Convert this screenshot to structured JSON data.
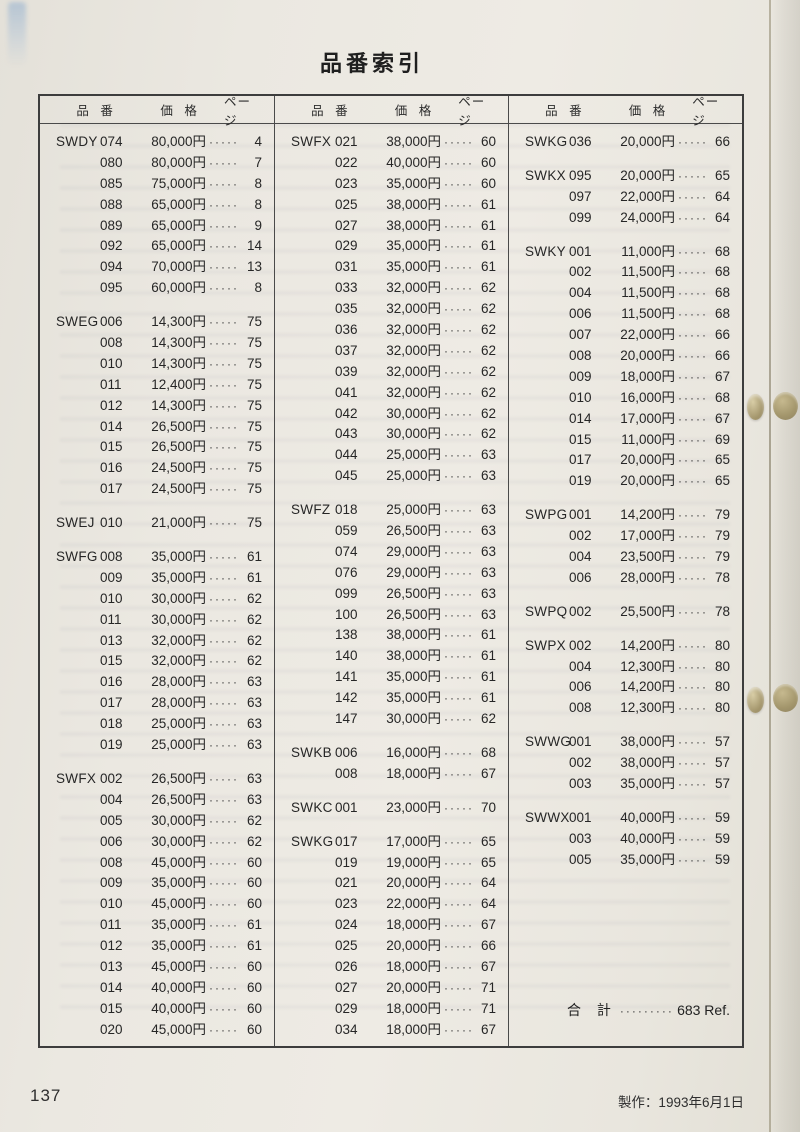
{
  "page": {
    "title": "品番索引",
    "page_number": "137",
    "footer_note": "製作：1993年6月1日"
  },
  "table": {
    "headers": {
      "part": "品 番",
      "price": "価 格",
      "page": "ページ"
    },
    "total": {
      "label": "合 計",
      "value": "683 Ref."
    },
    "columns": [
      {
        "groups": [
          {
            "rows": [
              {
                "prefix": "SWDY",
                "num": "074",
                "price": "80,000円",
                "page": "4"
              },
              {
                "prefix": "",
                "num": "080",
                "price": "80,000円",
                "page": "7"
              },
              {
                "prefix": "",
                "num": "085",
                "price": "75,000円",
                "page": "8"
              },
              {
                "prefix": "",
                "num": "088",
                "price": "65,000円",
                "page": "8"
              },
              {
                "prefix": "",
                "num": "089",
                "price": "65,000円",
                "page": "9"
              },
              {
                "prefix": "",
                "num": "092",
                "price": "65,000円",
                "page": "14"
              },
              {
                "prefix": "",
                "num": "094",
                "price": "70,000円",
                "page": "13"
              },
              {
                "prefix": "",
                "num": "095",
                "price": "60,000円",
                "page": "8"
              }
            ]
          },
          {
            "rows": [
              {
                "prefix": "SWEG",
                "num": "006",
                "price": "14,300円",
                "page": "75"
              },
              {
                "prefix": "",
                "num": "008",
                "price": "14,300円",
                "page": "75"
              },
              {
                "prefix": "",
                "num": "010",
                "price": "14,300円",
                "page": "75"
              },
              {
                "prefix": "",
                "num": "011",
                "price": "12,400円",
                "page": "75"
              },
              {
                "prefix": "",
                "num": "012",
                "price": "14,300円",
                "page": "75"
              },
              {
                "prefix": "",
                "num": "014",
                "price": "26,500円",
                "page": "75"
              },
              {
                "prefix": "",
                "num": "015",
                "price": "26,500円",
                "page": "75"
              },
              {
                "prefix": "",
                "num": "016",
                "price": "24,500円",
                "page": "75"
              },
              {
                "prefix": "",
                "num": "017",
                "price": "24,500円",
                "page": "75"
              }
            ]
          },
          {
            "rows": [
              {
                "prefix": "SWEJ",
                "num": "010",
                "price": "21,000円",
                "page": "75"
              }
            ]
          },
          {
            "rows": [
              {
                "prefix": "SWFG",
                "num": "008",
                "price": "35,000円",
                "page": "61"
              },
              {
                "prefix": "",
                "num": "009",
                "price": "35,000円",
                "page": "61"
              },
              {
                "prefix": "",
                "num": "010",
                "price": "30,000円",
                "page": "62"
              },
              {
                "prefix": "",
                "num": "011",
                "price": "30,000円",
                "page": "62"
              },
              {
                "prefix": "",
                "num": "013",
                "price": "32,000円",
                "page": "62"
              },
              {
                "prefix": "",
                "num": "015",
                "price": "32,000円",
                "page": "62"
              },
              {
                "prefix": "",
                "num": "016",
                "price": "28,000円",
                "page": "63"
              },
              {
                "prefix": "",
                "num": "017",
                "price": "28,000円",
                "page": "63"
              },
              {
                "prefix": "",
                "num": "018",
                "price": "25,000円",
                "page": "63"
              },
              {
                "prefix": "",
                "num": "019",
                "price": "25,000円",
                "page": "63"
              }
            ]
          },
          {
            "rows": [
              {
                "prefix": "SWFX",
                "num": "002",
                "price": "26,500円",
                "page": "63"
              },
              {
                "prefix": "",
                "num": "004",
                "price": "26,500円",
                "page": "63"
              },
              {
                "prefix": "",
                "num": "005",
                "price": "30,000円",
                "page": "62"
              },
              {
                "prefix": "",
                "num": "006",
                "price": "30,000円",
                "page": "62"
              },
              {
                "prefix": "",
                "num": "008",
                "price": "45,000円",
                "page": "60"
              },
              {
                "prefix": "",
                "num": "009",
                "price": "35,000円",
                "page": "60"
              },
              {
                "prefix": "",
                "num": "010",
                "price": "45,000円",
                "page": "60"
              },
              {
                "prefix": "",
                "num": "011",
                "price": "35,000円",
                "page": "61"
              },
              {
                "prefix": "",
                "num": "012",
                "price": "35,000円",
                "page": "61"
              },
              {
                "prefix": "",
                "num": "013",
                "price": "45,000円",
                "page": "60"
              },
              {
                "prefix": "",
                "num": "014",
                "price": "40,000円",
                "page": "60"
              },
              {
                "prefix": "",
                "num": "015",
                "price": "40,000円",
                "page": "60"
              },
              {
                "prefix": "",
                "num": "020",
                "price": "45,000円",
                "page": "60"
              }
            ]
          }
        ]
      },
      {
        "groups": [
          {
            "rows": [
              {
                "prefix": "SWFX",
                "num": "021",
                "price": "38,000円",
                "page": "60"
              },
              {
                "prefix": "",
                "num": "022",
                "price": "40,000円",
                "page": "60"
              },
              {
                "prefix": "",
                "num": "023",
                "price": "35,000円",
                "page": "60"
              },
              {
                "prefix": "",
                "num": "025",
                "price": "38,000円",
                "page": "61"
              },
              {
                "prefix": "",
                "num": "027",
                "price": "38,000円",
                "page": "61"
              },
              {
                "prefix": "",
                "num": "029",
                "price": "35,000円",
                "page": "61"
              },
              {
                "prefix": "",
                "num": "031",
                "price": "35,000円",
                "page": "61"
              },
              {
                "prefix": "",
                "num": "033",
                "price": "32,000円",
                "page": "62"
              },
              {
                "prefix": "",
                "num": "035",
                "price": "32,000円",
                "page": "62"
              },
              {
                "prefix": "",
                "num": "036",
                "price": "32,000円",
                "page": "62"
              },
              {
                "prefix": "",
                "num": "037",
                "price": "32,000円",
                "page": "62"
              },
              {
                "prefix": "",
                "num": "039",
                "price": "32,000円",
                "page": "62"
              },
              {
                "prefix": "",
                "num": "041",
                "price": "32,000円",
                "page": "62"
              },
              {
                "prefix": "",
                "num": "042",
                "price": "30,000円",
                "page": "62"
              },
              {
                "prefix": "",
                "num": "043",
                "price": "30,000円",
                "page": "62"
              },
              {
                "prefix": "",
                "num": "044",
                "price": "25,000円",
                "page": "63"
              },
              {
                "prefix": "",
                "num": "045",
                "price": "25,000円",
                "page": "63"
              }
            ]
          },
          {
            "rows": [
              {
                "prefix": "SWFZ",
                "num": "018",
                "price": "25,000円",
                "page": "63"
              },
              {
                "prefix": "",
                "num": "059",
                "price": "26,500円",
                "page": "63"
              },
              {
                "prefix": "",
                "num": "074",
                "price": "29,000円",
                "page": "63"
              },
              {
                "prefix": "",
                "num": "076",
                "price": "29,000円",
                "page": "63"
              },
              {
                "prefix": "",
                "num": "099",
                "price": "26,500円",
                "page": "63"
              },
              {
                "prefix": "",
                "num": "100",
                "price": "26,500円",
                "page": "63"
              },
              {
                "prefix": "",
                "num": "138",
                "price": "38,000円",
                "page": "61"
              },
              {
                "prefix": "",
                "num": "140",
                "price": "38,000円",
                "page": "61"
              },
              {
                "prefix": "",
                "num": "141",
                "price": "35,000円",
                "page": "61"
              },
              {
                "prefix": "",
                "num": "142",
                "price": "35,000円",
                "page": "61"
              },
              {
                "prefix": "",
                "num": "147",
                "price": "30,000円",
                "page": "62"
              }
            ]
          },
          {
            "rows": [
              {
                "prefix": "SWKB",
                "num": "006",
                "price": "16,000円",
                "page": "68"
              },
              {
                "prefix": "",
                "num": "008",
                "price": "18,000円",
                "page": "67"
              }
            ]
          },
          {
            "rows": [
              {
                "prefix": "SWKC",
                "num": "001",
                "price": "23,000円",
                "page": "70"
              }
            ]
          },
          {
            "rows": [
              {
                "prefix": "SWKG",
                "num": "017",
                "price": "17,000円",
                "page": "65"
              },
              {
                "prefix": "",
                "num": "019",
                "price": "19,000円",
                "page": "65"
              },
              {
                "prefix": "",
                "num": "021",
                "price": "20,000円",
                "page": "64"
              },
              {
                "prefix": "",
                "num": "023",
                "price": "22,000円",
                "page": "64"
              },
              {
                "prefix": "",
                "num": "024",
                "price": "18,000円",
                "page": "67"
              },
              {
                "prefix": "",
                "num": "025",
                "price": "20,000円",
                "page": "66"
              },
              {
                "prefix": "",
                "num": "026",
                "price": "18,000円",
                "page": "67"
              },
              {
                "prefix": "",
                "num": "027",
                "price": "20,000円",
                "page": "71"
              },
              {
                "prefix": "",
                "num": "029",
                "price": "18,000円",
                "page": "71"
              },
              {
                "prefix": "",
                "num": "034",
                "price": "18,000円",
                "page": "67"
              }
            ]
          }
        ]
      },
      {
        "groups": [
          {
            "rows": [
              {
                "prefix": "SWKG",
                "num": "036",
                "price": "20,000円",
                "page": "66"
              }
            ]
          },
          {
            "rows": [
              {
                "prefix": "SWKX",
                "num": "095",
                "price": "20,000円",
                "page": "65"
              },
              {
                "prefix": "",
                "num": "097",
                "price": "22,000円",
                "page": "64"
              },
              {
                "prefix": "",
                "num": "099",
                "price": "24,000円",
                "page": "64"
              }
            ]
          },
          {
            "rows": [
              {
                "prefix": "SWKY",
                "num": "001",
                "price": "11,000円",
                "page": "68"
              },
              {
                "prefix": "",
                "num": "002",
                "price": "11,500円",
                "page": "68"
              },
              {
                "prefix": "",
                "num": "004",
                "price": "11,500円",
                "page": "68"
              },
              {
                "prefix": "",
                "num": "006",
                "price": "11,500円",
                "page": "68"
              },
              {
                "prefix": "",
                "num": "007",
                "price": "22,000円",
                "page": "66"
              },
              {
                "prefix": "",
                "num": "008",
                "price": "20,000円",
                "page": "66"
              },
              {
                "prefix": "",
                "num": "009",
                "price": "18,000円",
                "page": "67"
              },
              {
                "prefix": "",
                "num": "010",
                "price": "16,000円",
                "page": "68"
              },
              {
                "prefix": "",
                "num": "014",
                "price": "17,000円",
                "page": "67"
              },
              {
                "prefix": "",
                "num": "015",
                "price": "11,000円",
                "page": "69"
              },
              {
                "prefix": "",
                "num": "017",
                "price": "20,000円",
                "page": "65"
              },
              {
                "prefix": "",
                "num": "019",
                "price": "20,000円",
                "page": "65"
              }
            ]
          },
          {
            "rows": [
              {
                "prefix": "SWPG",
                "num": "001",
                "price": "14,200円",
                "page": "79"
              },
              {
                "prefix": "",
                "num": "002",
                "price": "17,000円",
                "page": "79"
              },
              {
                "prefix": "",
                "num": "004",
                "price": "23,500円",
                "page": "79"
              },
              {
                "prefix": "",
                "num": "006",
                "price": "28,000円",
                "page": "78"
              }
            ]
          },
          {
            "rows": [
              {
                "prefix": "SWPQ",
                "num": "002",
                "price": "25,500円",
                "page": "78"
              }
            ]
          },
          {
            "rows": [
              {
                "prefix": "SWPX",
                "num": "002",
                "price": "14,200円",
                "page": "80"
              },
              {
                "prefix": "",
                "num": "004",
                "price": "12,300円",
                "page": "80"
              },
              {
                "prefix": "",
                "num": "006",
                "price": "14,200円",
                "page": "80"
              },
              {
                "prefix": "",
                "num": "008",
                "price": "12,300円",
                "page": "80"
              }
            ]
          },
          {
            "rows": [
              {
                "prefix": "SWWG",
                "num": "001",
                "price": "38,000円",
                "page": "57"
              },
              {
                "prefix": "",
                "num": "002",
                "price": "38,000円",
                "page": "57"
              },
              {
                "prefix": "",
                "num": "003",
                "price": "35,000円",
                "page": "57"
              }
            ]
          },
          {
            "rows": [
              {
                "prefix": "SWWX",
                "num": "001",
                "price": "40,000円",
                "page": "59"
              },
              {
                "prefix": "",
                "num": "003",
                "price": "40,000円",
                "page": "59"
              },
              {
                "prefix": "",
                "num": "005",
                "price": "35,000円",
                "page": "59"
              }
            ]
          }
        ]
      }
    ]
  }
}
